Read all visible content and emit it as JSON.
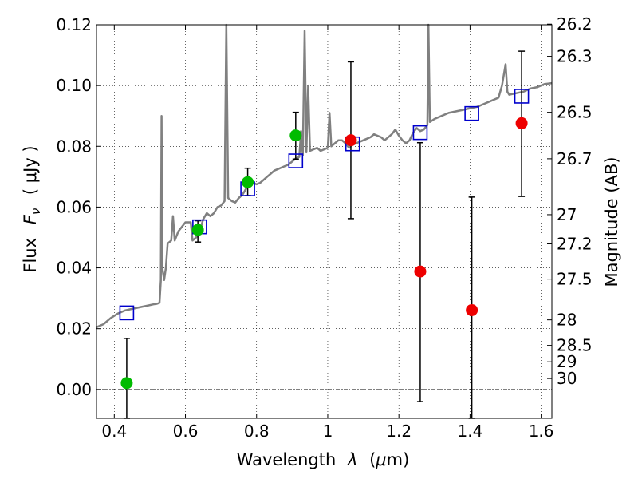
{
  "chart_data": {
    "type": "scatter",
    "xlabel_text": "Wavelength",
    "xlabel_symbol": "λ",
    "xlabel_unit_open": "(",
    "xlabel_unit_mu": "μ",
    "xlabel_unit_rest": "m)",
    "ylabel_text": "Flux",
    "ylabel_symbol": "F",
    "ylabel_subscript": "ν",
    "ylabel_unit": "( μJy )",
    "y2label": "Magnitude (AB)",
    "xlim": [
      0.35,
      1.63
    ],
    "ylim": [
      -0.0095,
      0.12
    ],
    "grid": true,
    "grid_style": "dotted",
    "x_ticks": [
      0.4,
      0.6,
      0.8,
      1.0,
      1.2,
      1.4,
      1.6
    ],
    "x_tick_labels": [
      "0.4",
      "0.6",
      "0.8",
      "1",
      "1.2",
      "1.4",
      "1.6"
    ],
    "y_ticks": [
      0.0,
      0.02,
      0.04,
      0.06,
      0.08,
      0.1,
      0.12
    ],
    "y_tick_labels": [
      "0.00",
      "0.02",
      "0.04",
      "0.06",
      "0.08",
      "0.10",
      "0.12"
    ],
    "mag_ticks": [
      {
        "label": "26.2",
        "flux": 0.1202
      },
      {
        "label": "26.3",
        "flux": 0.1096
      },
      {
        "label": "26.5",
        "flux": 0.0912
      },
      {
        "label": "26.7",
        "flux": 0.0759
      },
      {
        "label": "27",
        "flux": 0.0575
      },
      {
        "label": "27.2",
        "flux": 0.0479
      },
      {
        "label": "27.5",
        "flux": 0.0363
      },
      {
        "label": "28",
        "flux": 0.0229
      },
      {
        "label": "28.5",
        "flux": 0.0145
      },
      {
        "label": "29",
        "flux": 0.0091
      },
      {
        "label": "30",
        "flux": 0.0036
      }
    ],
    "zero_line": 0.0,
    "colors": {
      "model": "#808080",
      "squares": "#0000cc",
      "green": "#00bb00",
      "red": "#ee0000",
      "errorbar": "#000000"
    },
    "series": [
      {
        "kind": "model_spectrum",
        "points": [
          [
            0.35,
            0.0205
          ],
          [
            0.37,
            0.0215
          ],
          [
            0.39,
            0.0235
          ],
          [
            0.41,
            0.025
          ],
          [
            0.43,
            0.026
          ],
          [
            0.45,
            0.0265
          ],
          [
            0.47,
            0.027
          ],
          [
            0.49,
            0.0275
          ],
          [
            0.51,
            0.028
          ],
          [
            0.52,
            0.0282
          ],
          [
            0.527,
            0.0285
          ],
          [
            0.531,
            0.036
          ],
          [
            0.533,
            0.09
          ],
          [
            0.535,
            0.04
          ],
          [
            0.54,
            0.036
          ],
          [
            0.545,
            0.04
          ],
          [
            0.55,
            0.048
          ],
          [
            0.56,
            0.049
          ],
          [
            0.565,
            0.057
          ],
          [
            0.57,
            0.049
          ],
          [
            0.58,
            0.052
          ],
          [
            0.6,
            0.055
          ],
          [
            0.615,
            0.055
          ],
          [
            0.62,
            0.049
          ],
          [
            0.63,
            0.05
          ],
          [
            0.64,
            0.052
          ],
          [
            0.65,
            0.056
          ],
          [
            0.66,
            0.058
          ],
          [
            0.67,
            0.057
          ],
          [
            0.68,
            0.058
          ],
          [
            0.69,
            0.06
          ],
          [
            0.7,
            0.0605
          ],
          [
            0.71,
            0.062
          ],
          [
            0.715,
            0.121
          ],
          [
            0.72,
            0.063
          ],
          [
            0.73,
            0.062
          ],
          [
            0.74,
            0.0615
          ],
          [
            0.75,
            0.063
          ],
          [
            0.76,
            0.064
          ],
          [
            0.77,
            0.066
          ],
          [
            0.78,
            0.068
          ],
          [
            0.79,
            0.068
          ],
          [
            0.8,
            0.0675
          ],
          [
            0.81,
            0.068
          ],
          [
            0.82,
            0.069
          ],
          [
            0.83,
            0.07
          ],
          [
            0.84,
            0.071
          ],
          [
            0.85,
            0.072
          ],
          [
            0.86,
            0.0725
          ],
          [
            0.87,
            0.073
          ],
          [
            0.88,
            0.0735
          ],
          [
            0.89,
            0.074
          ],
          [
            0.9,
            0.075
          ],
          [
            0.91,
            0.076
          ],
          [
            0.92,
            0.0765
          ],
          [
            0.925,
            0.085
          ],
          [
            0.93,
            0.077
          ],
          [
            0.935,
            0.118
          ],
          [
            0.94,
            0.078
          ],
          [
            0.945,
            0.1
          ],
          [
            0.95,
            0.0785
          ],
          [
            0.96,
            0.079
          ],
          [
            0.97,
            0.0795
          ],
          [
            0.98,
            0.0785
          ],
          [
            0.99,
            0.079
          ],
          [
            1.0,
            0.0795
          ],
          [
            1.005,
            0.091
          ],
          [
            1.01,
            0.08
          ],
          [
            1.02,
            0.081
          ],
          [
            1.03,
            0.082
          ],
          [
            1.04,
            0.082
          ],
          [
            1.05,
            0.081
          ],
          [
            1.06,
            0.0795
          ],
          [
            1.07,
            0.0805
          ],
          [
            1.08,
            0.081
          ],
          [
            1.09,
            0.0815
          ],
          [
            1.1,
            0.082
          ],
          [
            1.11,
            0.0825
          ],
          [
            1.12,
            0.083
          ],
          [
            1.13,
            0.084
          ],
          [
            1.14,
            0.0835
          ],
          [
            1.15,
            0.083
          ],
          [
            1.16,
            0.082
          ],
          [
            1.17,
            0.083
          ],
          [
            1.18,
            0.084
          ],
          [
            1.19,
            0.0855
          ],
          [
            1.2,
            0.0835
          ],
          [
            1.21,
            0.082
          ],
          [
            1.22,
            0.081
          ],
          [
            1.23,
            0.082
          ],
          [
            1.24,
            0.0845
          ],
          [
            1.25,
            0.086
          ],
          [
            1.26,
            0.085
          ],
          [
            1.27,
            0.0855
          ],
          [
            1.28,
            0.087
          ],
          [
            1.283,
            0.121
          ],
          [
            1.287,
            0.088
          ],
          [
            1.3,
            0.089
          ],
          [
            1.32,
            0.09
          ],
          [
            1.34,
            0.091
          ],
          [
            1.36,
            0.0915
          ],
          [
            1.38,
            0.092
          ],
          [
            1.4,
            0.0925
          ],
          [
            1.42,
            0.093
          ],
          [
            1.44,
            0.094
          ],
          [
            1.46,
            0.095
          ],
          [
            1.48,
            0.096
          ],
          [
            1.49,
            0.1
          ],
          [
            1.5,
            0.107
          ],
          [
            1.505,
            0.098
          ],
          [
            1.51,
            0.097
          ],
          [
            1.53,
            0.0975
          ],
          [
            1.55,
            0.098
          ],
          [
            1.57,
            0.099
          ],
          [
            1.59,
            0.0995
          ],
          [
            1.61,
            0.1005
          ],
          [
            1.63,
            0.1008
          ]
        ]
      },
      {
        "kind": "model_photometry",
        "marker": "open-square",
        "x": [
          0.435,
          0.64,
          0.775,
          0.91,
          1.07,
          1.26,
          1.405,
          1.545
        ],
        "y": [
          0.0252,
          0.0535,
          0.066,
          0.0752,
          0.0808,
          0.0845,
          0.0908,
          0.0965
        ]
      },
      {
        "kind": "observed",
        "marker": "filled-circle",
        "color": "green",
        "x": [
          0.435,
          0.635,
          0.775,
          0.91
        ],
        "y": [
          0.0021,
          0.0525,
          0.0682,
          0.0836
        ],
        "yerr_low": [
          -0.0095,
          0.0485,
          0.0638,
          0.0758
        ],
        "yerr_high": [
          0.0168,
          0.0555,
          0.0728,
          0.0912
        ]
      },
      {
        "kind": "observed",
        "marker": "filled-circle",
        "color": "red",
        "x": [
          1.065,
          1.26,
          1.405,
          1.545
        ],
        "y": [
          0.082,
          0.0388,
          0.0261,
          0.0876
        ],
        "yerr_low": [
          0.0562,
          -0.004,
          -0.0095,
          0.0635
        ],
        "yerr_high": [
          0.1078,
          0.0812,
          0.0633,
          0.1113
        ]
      }
    ]
  }
}
